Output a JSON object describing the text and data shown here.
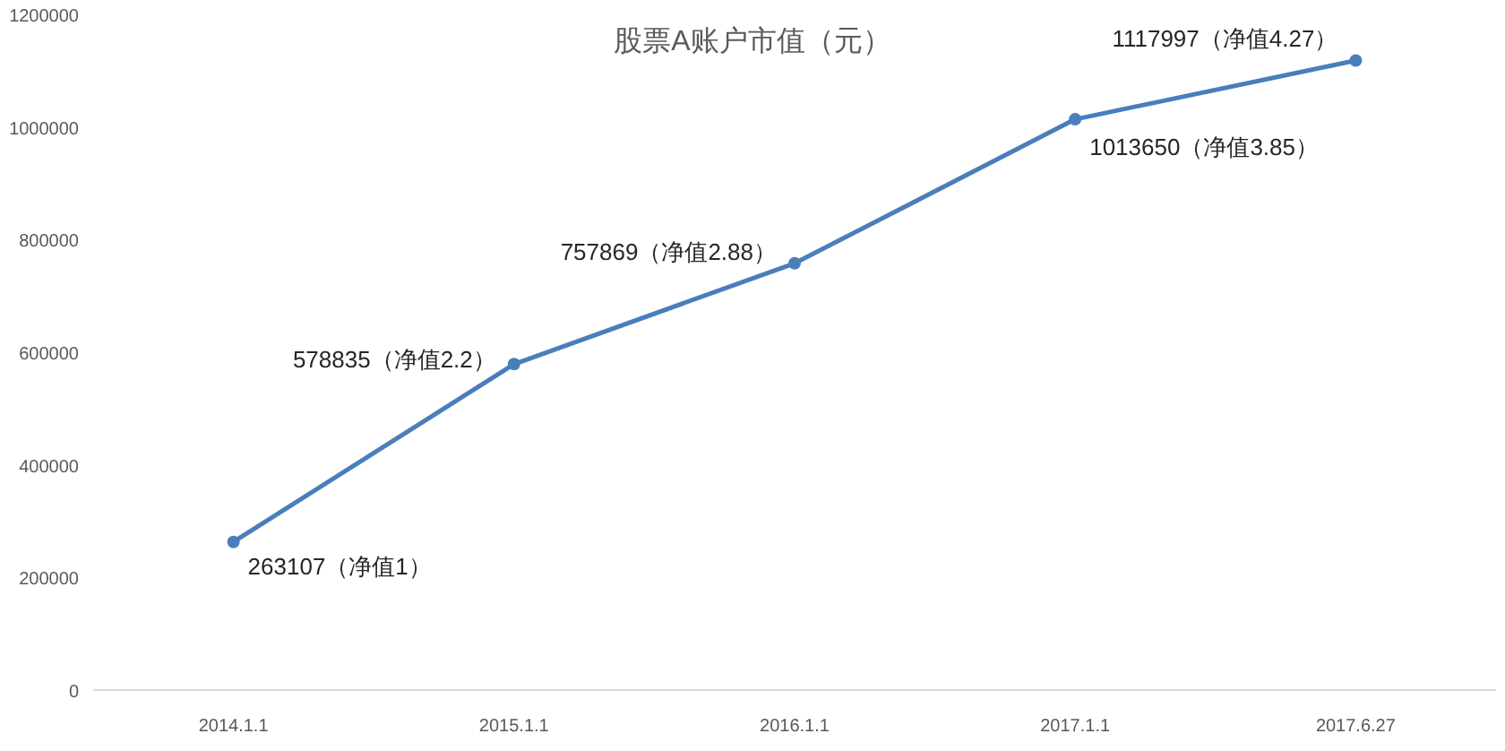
{
  "chart_data": {
    "type": "line",
    "title": "股票A账户市值（元）",
    "categories": [
      "2014.1.1",
      "2015.1.1",
      "2016.1.1",
      "2017.1.1",
      "2017.6.27"
    ],
    "series": [
      {
        "color": "#4a7ebb",
        "values": [
          263107,
          578835,
          757869,
          1013650,
          1117997
        ],
        "value_labels": [
          "263107（净值1）",
          "578835（净值2.2）",
          "757869（净值2.88）",
          "1013650（净值3.85）",
          "1117997（净值4.27）"
        ]
      }
    ],
    "ylim": [
      0,
      1200000
    ],
    "yticks": [
      0,
      200000,
      400000,
      600000,
      800000,
      1000000,
      1200000
    ],
    "grid": false,
    "marker": "circle",
    "line_style": "solid"
  }
}
